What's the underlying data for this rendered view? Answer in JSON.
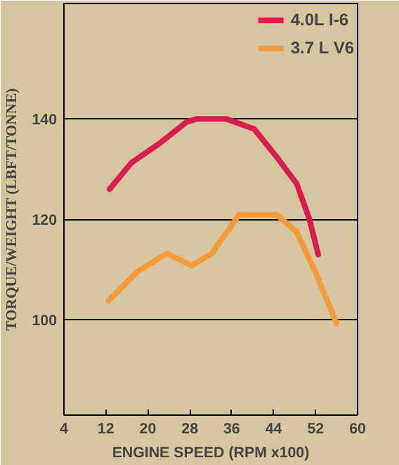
{
  "chart_data": {
    "type": "line",
    "xlabel": "ENGINE SPEED (RPM x100)",
    "ylabel": "TORQUE/WEIGHT (LBFT/TONNE)",
    "xlim": [
      4,
      60
    ],
    "xticks": [
      4,
      12,
      20,
      28,
      36,
      44,
      52,
      60
    ],
    "ylim": [
      81,
      163
    ],
    "yticks": [
      100,
      120,
      140
    ],
    "grid": "y",
    "legend": "top",
    "line_style": "solid",
    "marker": "none",
    "series": [
      {
        "name": "4.0L I-6",
        "color": "#d81e50",
        "x": [
          12.7,
          16.9,
          22.2,
          27.4,
          29.3,
          35.0,
          40.3,
          44.6,
          48.4,
          50.8,
          52.5
        ],
        "values": [
          126,
          131.3,
          135.1,
          139.4,
          140,
          140,
          138,
          132.4,
          127.1,
          120.1,
          113
        ]
      },
      {
        "name": "3.7 L V6",
        "color": "#f59a3a",
        "x": [
          12.5,
          17.9,
          23.6,
          28.4,
          32.2,
          37.4,
          44.6,
          48.4,
          52.2,
          56
        ],
        "values": [
          103.8,
          109.5,
          113.2,
          110.8,
          113.2,
          120.9,
          120.9,
          117.5,
          108.9,
          99.3
        ]
      }
    ]
  }
}
